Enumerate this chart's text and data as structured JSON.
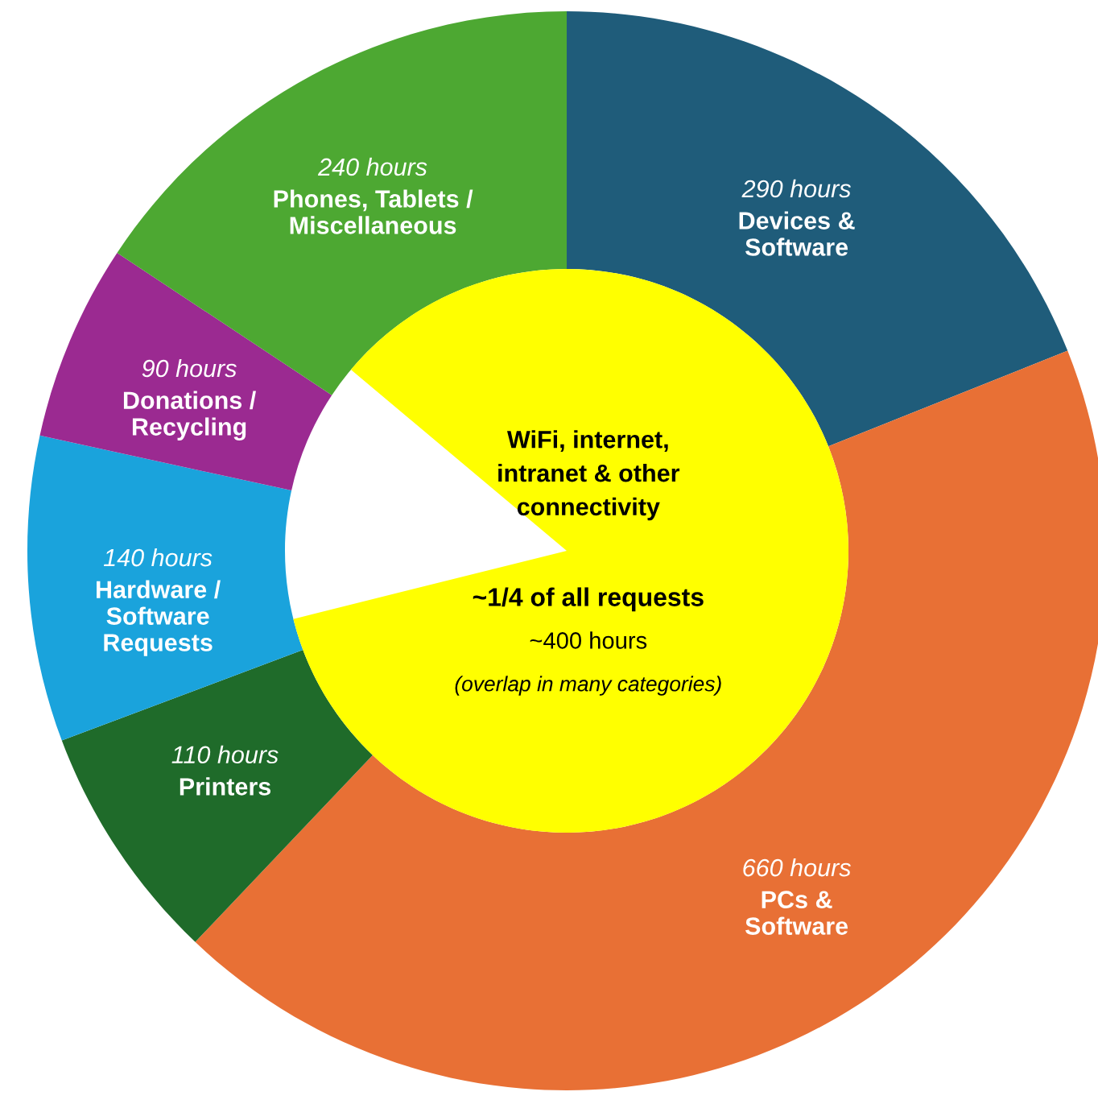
{
  "chart_data": {
    "type": "donut",
    "categories": [
      "Devices &\nSoftware",
      "PCs &\nSoftware",
      "Printers",
      "Hardware /\nSoftware\nRequests",
      "Donations /\nRecycling",
      "Phones, Tablets /\nMiscellaneous"
    ],
    "values": [
      290,
      660,
      110,
      140,
      90,
      240
    ],
    "value_labels": [
      "290 hours",
      "660 hours",
      "110 hours",
      "140 hours",
      "90 hours",
      "240 hours"
    ],
    "colors": [
      "#1f5c7a",
      "#e87035",
      "#1f6b2a",
      "#1aa3dc",
      "#9b2a91",
      "#4da832"
    ],
    "annotations": [
      "WiFi, internet,\nintranet & other\nconnectivity",
      "~1/4 of all requests",
      "~400 hours",
      "(overlap in many categories)"
    ]
  }
}
